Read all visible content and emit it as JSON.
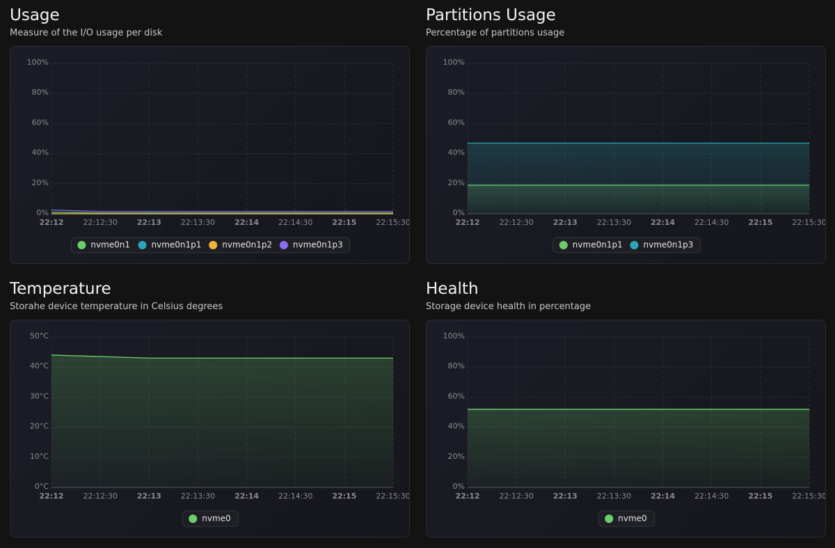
{
  "chart_data": [
    {
      "type": "line",
      "title": "Usage",
      "subtitle": "Measure of the I/O usage per disk",
      "categories": [
        "22:12",
        "22:12:30",
        "22:13",
        "22:13:30",
        "22:14",
        "22:14:30",
        "22:15",
        "22:15:30"
      ],
      "series": [
        {
          "name": "nvme0n1",
          "color": "#6ccf6c",
          "values": [
            1,
            0.5,
            0.5,
            0.5,
            0.5,
            0.5,
            0.5,
            0.5
          ]
        },
        {
          "name": "nvme0n1p1",
          "color": "#2aa6b8",
          "values": [
            0,
            0,
            0,
            0,
            0,
            0,
            0,
            0
          ]
        },
        {
          "name": "nvme0n1p2",
          "color": "#f0b33b",
          "values": [
            0,
            0,
            0,
            0,
            0,
            0,
            0,
            0
          ]
        },
        {
          "name": "nvme0n1p3",
          "color": "#8c6cf0",
          "values": [
            2.5,
            1.5,
            1.5,
            1.5,
            1.5,
            1.5,
            1.5,
            1.5
          ]
        }
      ],
      "fill": false,
      "ylim": [
        0,
        100
      ],
      "yticks": [
        {
          "value": 0,
          "label": "0%"
        },
        {
          "value": 20,
          "label": "20%"
        },
        {
          "value": 40,
          "label": "40%"
        },
        {
          "value": 60,
          "label": "60%"
        },
        {
          "value": 80,
          "label": "80%"
        },
        {
          "value": 100,
          "label": "100%"
        }
      ],
      "grid": true,
      "legend": "bottom"
    },
    {
      "type": "line",
      "title": "Partitions Usage",
      "subtitle": "Percentage of partitions usage",
      "categories": [
        "22:12",
        "22:12:30",
        "22:13",
        "22:13:30",
        "22:14",
        "22:14:30",
        "22:15",
        "22:15:30"
      ],
      "series": [
        {
          "name": "nvme0n1p1",
          "color": "#6ccf6c",
          "values": [
            19,
            19,
            19,
            19,
            19,
            19,
            19,
            19
          ]
        },
        {
          "name": "nvme0n1p3",
          "color": "#2aa6b8",
          "values": [
            47,
            47,
            47,
            47,
            47,
            47,
            47,
            47
          ]
        }
      ],
      "fill": true,
      "ylim": [
        0,
        100
      ],
      "yticks": [
        {
          "value": 0,
          "label": "0%"
        },
        {
          "value": 20,
          "label": "20%"
        },
        {
          "value": 40,
          "label": "40%"
        },
        {
          "value": 60,
          "label": "60%"
        },
        {
          "value": 80,
          "label": "80%"
        },
        {
          "value": 100,
          "label": "100%"
        }
      ],
      "grid": true,
      "legend": "bottom"
    },
    {
      "type": "line",
      "title": "Temperature",
      "subtitle": "Storahe device temperature in Celsius degrees",
      "categories": [
        "22:12",
        "22:12:30",
        "22:13",
        "22:13:30",
        "22:14",
        "22:14:30",
        "22:15",
        "22:15:30"
      ],
      "series": [
        {
          "name": "nvme0",
          "color": "#6ccf6c",
          "values": [
            44,
            43.5,
            43,
            43,
            43,
            43,
            43,
            43
          ]
        }
      ],
      "fill": true,
      "ylim": [
        0,
        50
      ],
      "yticks": [
        {
          "value": 0,
          "label": "0°C"
        },
        {
          "value": 10,
          "label": "10°C"
        },
        {
          "value": 20,
          "label": "20°C"
        },
        {
          "value": 30,
          "label": "30°C"
        },
        {
          "value": 40,
          "label": "40°C"
        },
        {
          "value": 50,
          "label": "50°C"
        }
      ],
      "grid": true,
      "legend": "bottom"
    },
    {
      "type": "line",
      "title": "Health",
      "subtitle": "Storage device health in percentage",
      "categories": [
        "22:12",
        "22:12:30",
        "22:13",
        "22:13:30",
        "22:14",
        "22:14:30",
        "22:15",
        "22:15:30"
      ],
      "series": [
        {
          "name": "nvme0",
          "color": "#6ccf6c",
          "values": [
            52,
            52,
            52,
            52,
            52,
            52,
            52,
            52
          ]
        }
      ],
      "fill": true,
      "ylim": [
        0,
        100
      ],
      "yticks": [
        {
          "value": 0,
          "label": "0%"
        },
        {
          "value": 20,
          "label": "20%"
        },
        {
          "value": 40,
          "label": "40%"
        },
        {
          "value": 60,
          "label": "60%"
        },
        {
          "value": 80,
          "label": "80%"
        },
        {
          "value": 100,
          "label": "100%"
        }
      ],
      "grid": true,
      "legend": "bottom"
    }
  ]
}
